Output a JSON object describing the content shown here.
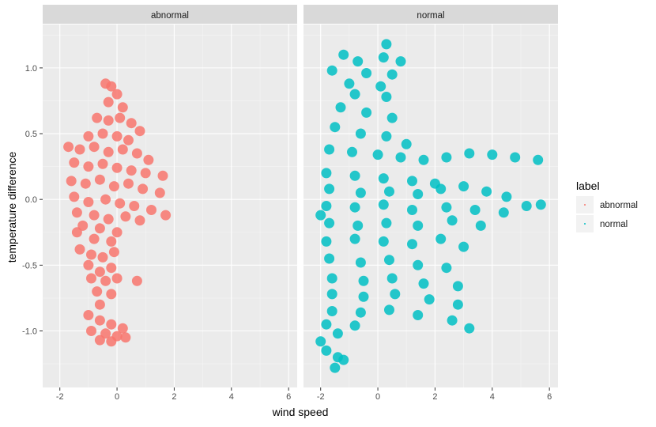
{
  "chart_data": {
    "type": "scatter",
    "facet_labels": [
      "abnormal",
      "normal"
    ],
    "xlabel": "wind speed",
    "ylabel": "temperature difference",
    "xlim": [
      -2.6,
      6.3
    ],
    "ylim": [
      -1.43,
      1.33
    ],
    "x_ticks": [
      -2,
      0,
      2,
      4,
      6
    ],
    "x_tick_labels": [
      "-2",
      "0",
      "2",
      "4",
      "6"
    ],
    "y_ticks": [
      -1.0,
      -0.5,
      0.0,
      0.5,
      1.0
    ],
    "y_tick_labels": [
      "-1.0",
      "-0.5",
      "0.0",
      "0.5",
      "1.0"
    ],
    "grid": true,
    "legend": {
      "title": "label",
      "position": "right",
      "entries": [
        {
          "label": "abnormal",
          "color": "#F8766D"
        },
        {
          "label": "normal",
          "color": "#00BFC4"
        }
      ]
    },
    "series": [
      {
        "name": "abnormal",
        "facet": "abnormal",
        "color": "#F8766D",
        "points": [
          [
            -0.4,
            0.88
          ],
          [
            -0.2,
            0.86
          ],
          [
            0.0,
            0.8
          ],
          [
            -0.3,
            0.74
          ],
          [
            0.2,
            0.7
          ],
          [
            -0.7,
            0.62
          ],
          [
            -0.3,
            0.6
          ],
          [
            0.1,
            0.62
          ],
          [
            0.5,
            0.58
          ],
          [
            0.8,
            0.52
          ],
          [
            -1.0,
            0.48
          ],
          [
            -0.5,
            0.5
          ],
          [
            0.0,
            0.48
          ],
          [
            0.4,
            0.45
          ],
          [
            -1.7,
            0.4
          ],
          [
            -1.3,
            0.38
          ],
          [
            -0.8,
            0.4
          ],
          [
            -0.3,
            0.36
          ],
          [
            0.2,
            0.38
          ],
          [
            0.7,
            0.35
          ],
          [
            1.1,
            0.3
          ],
          [
            -1.5,
            0.28
          ],
          [
            -1.0,
            0.25
          ],
          [
            -0.5,
            0.27
          ],
          [
            0.0,
            0.24
          ],
          [
            0.5,
            0.22
          ],
          [
            1.0,
            0.2
          ],
          [
            1.6,
            0.18
          ],
          [
            -1.6,
            0.14
          ],
          [
            -1.1,
            0.12
          ],
          [
            -0.6,
            0.15
          ],
          [
            -0.1,
            0.1
          ],
          [
            0.4,
            0.12
          ],
          [
            0.9,
            0.08
          ],
          [
            1.5,
            0.05
          ],
          [
            -1.5,
            0.02
          ],
          [
            -1.0,
            -0.02
          ],
          [
            -0.4,
            0.0
          ],
          [
            0.1,
            -0.03
          ],
          [
            0.6,
            -0.05
          ],
          [
            1.2,
            -0.08
          ],
          [
            1.7,
            -0.12
          ],
          [
            -1.4,
            -0.1
          ],
          [
            -0.8,
            -0.12
          ],
          [
            -0.3,
            -0.15
          ],
          [
            0.3,
            -0.13
          ],
          [
            0.8,
            -0.16
          ],
          [
            -1.2,
            -0.2
          ],
          [
            -0.6,
            -0.22
          ],
          [
            0.0,
            -0.25
          ],
          [
            -0.8,
            -0.3
          ],
          [
            -0.2,
            -0.32
          ],
          [
            -1.4,
            -0.25
          ],
          [
            -1.3,
            -0.38
          ],
          [
            -0.9,
            -0.42
          ],
          [
            -0.5,
            -0.44
          ],
          [
            -0.1,
            -0.4
          ],
          [
            -1.0,
            -0.5
          ],
          [
            -0.6,
            -0.55
          ],
          [
            -0.2,
            -0.52
          ],
          [
            -0.9,
            -0.6
          ],
          [
            -0.4,
            -0.62
          ],
          [
            0.0,
            -0.6
          ],
          [
            0.7,
            -0.62
          ],
          [
            -0.7,
            -0.7
          ],
          [
            -0.2,
            -0.72
          ],
          [
            -0.6,
            -0.8
          ],
          [
            -1.0,
            -0.88
          ],
          [
            -0.6,
            -0.92
          ],
          [
            -0.2,
            -0.95
          ],
          [
            0.2,
            -0.98
          ],
          [
            -0.9,
            -1.0
          ],
          [
            -0.4,
            -1.02
          ],
          [
            0.0,
            -1.04
          ],
          [
            -0.6,
            -1.07
          ],
          [
            -0.2,
            -1.08
          ],
          [
            0.3,
            -1.05
          ]
        ]
      },
      {
        "name": "normal",
        "facet": "normal",
        "color": "#00BFC4",
        "points": [
          [
            0.3,
            1.18
          ],
          [
            -1.2,
            1.1
          ],
          [
            -0.7,
            1.05
          ],
          [
            0.2,
            1.08
          ],
          [
            0.8,
            1.05
          ],
          [
            -1.6,
            0.98
          ],
          [
            -0.4,
            0.96
          ],
          [
            0.5,
            0.95
          ],
          [
            -1.0,
            0.88
          ],
          [
            0.1,
            0.86
          ],
          [
            -0.8,
            0.8
          ],
          [
            0.3,
            0.78
          ],
          [
            -1.3,
            0.7
          ],
          [
            -0.4,
            0.66
          ],
          [
            0.5,
            0.62
          ],
          [
            -1.5,
            0.55
          ],
          [
            -0.6,
            0.5
          ],
          [
            0.3,
            0.48
          ],
          [
            1.0,
            0.42
          ],
          [
            -1.7,
            0.38
          ],
          [
            -0.9,
            0.36
          ],
          [
            0.0,
            0.34
          ],
          [
            0.8,
            0.32
          ],
          [
            1.6,
            0.3
          ],
          [
            2.4,
            0.32
          ],
          [
            3.2,
            0.35
          ],
          [
            4.0,
            0.34
          ],
          [
            4.8,
            0.32
          ],
          [
            5.6,
            0.3
          ],
          [
            -1.8,
            0.2
          ],
          [
            -0.8,
            0.18
          ],
          [
            0.2,
            0.16
          ],
          [
            1.2,
            0.14
          ],
          [
            2.0,
            0.12
          ],
          [
            -1.7,
            0.08
          ],
          [
            -0.6,
            0.05
          ],
          [
            0.4,
            0.06
          ],
          [
            1.4,
            0.04
          ],
          [
            2.2,
            0.08
          ],
          [
            3.0,
            0.1
          ],
          [
            3.8,
            0.06
          ],
          [
            4.5,
            0.02
          ],
          [
            -1.8,
            -0.05
          ],
          [
            -0.8,
            -0.06
          ],
          [
            0.2,
            -0.04
          ],
          [
            1.2,
            -0.08
          ],
          [
            2.4,
            -0.06
          ],
          [
            3.4,
            -0.08
          ],
          [
            4.4,
            -0.1
          ],
          [
            5.2,
            -0.05
          ],
          [
            5.7,
            -0.04
          ],
          [
            -1.7,
            -0.18
          ],
          [
            -0.7,
            -0.2
          ],
          [
            0.3,
            -0.18
          ],
          [
            1.4,
            -0.2
          ],
          [
            2.6,
            -0.16
          ],
          [
            3.6,
            -0.2
          ],
          [
            -2.0,
            -0.12
          ],
          [
            -1.8,
            -0.32
          ],
          [
            -0.8,
            -0.3
          ],
          [
            0.2,
            -0.32
          ],
          [
            1.2,
            -0.34
          ],
          [
            2.2,
            -0.3
          ],
          [
            3.0,
            -0.36
          ],
          [
            -1.7,
            -0.45
          ],
          [
            -0.6,
            -0.48
          ],
          [
            0.4,
            -0.46
          ],
          [
            1.4,
            -0.5
          ],
          [
            2.4,
            -0.52
          ],
          [
            -1.6,
            -0.6
          ],
          [
            -0.5,
            -0.62
          ],
          [
            0.5,
            -0.6
          ],
          [
            1.6,
            -0.64
          ],
          [
            2.8,
            -0.66
          ],
          [
            -1.6,
            -0.72
          ],
          [
            -0.5,
            -0.74
          ],
          [
            0.6,
            -0.72
          ],
          [
            1.8,
            -0.76
          ],
          [
            2.8,
            -0.8
          ],
          [
            -1.6,
            -0.85
          ],
          [
            -0.6,
            -0.86
          ],
          [
            0.4,
            -0.84
          ],
          [
            1.4,
            -0.88
          ],
          [
            2.6,
            -0.92
          ],
          [
            3.2,
            -0.98
          ],
          [
            -1.8,
            -0.95
          ],
          [
            -0.8,
            -0.96
          ],
          [
            -2.0,
            -1.08
          ],
          [
            -1.4,
            -1.02
          ],
          [
            -1.8,
            -1.15
          ],
          [
            -1.4,
            -1.2
          ],
          [
            -1.5,
            -1.28
          ],
          [
            -1.2,
            -1.22
          ]
        ]
      }
    ]
  }
}
